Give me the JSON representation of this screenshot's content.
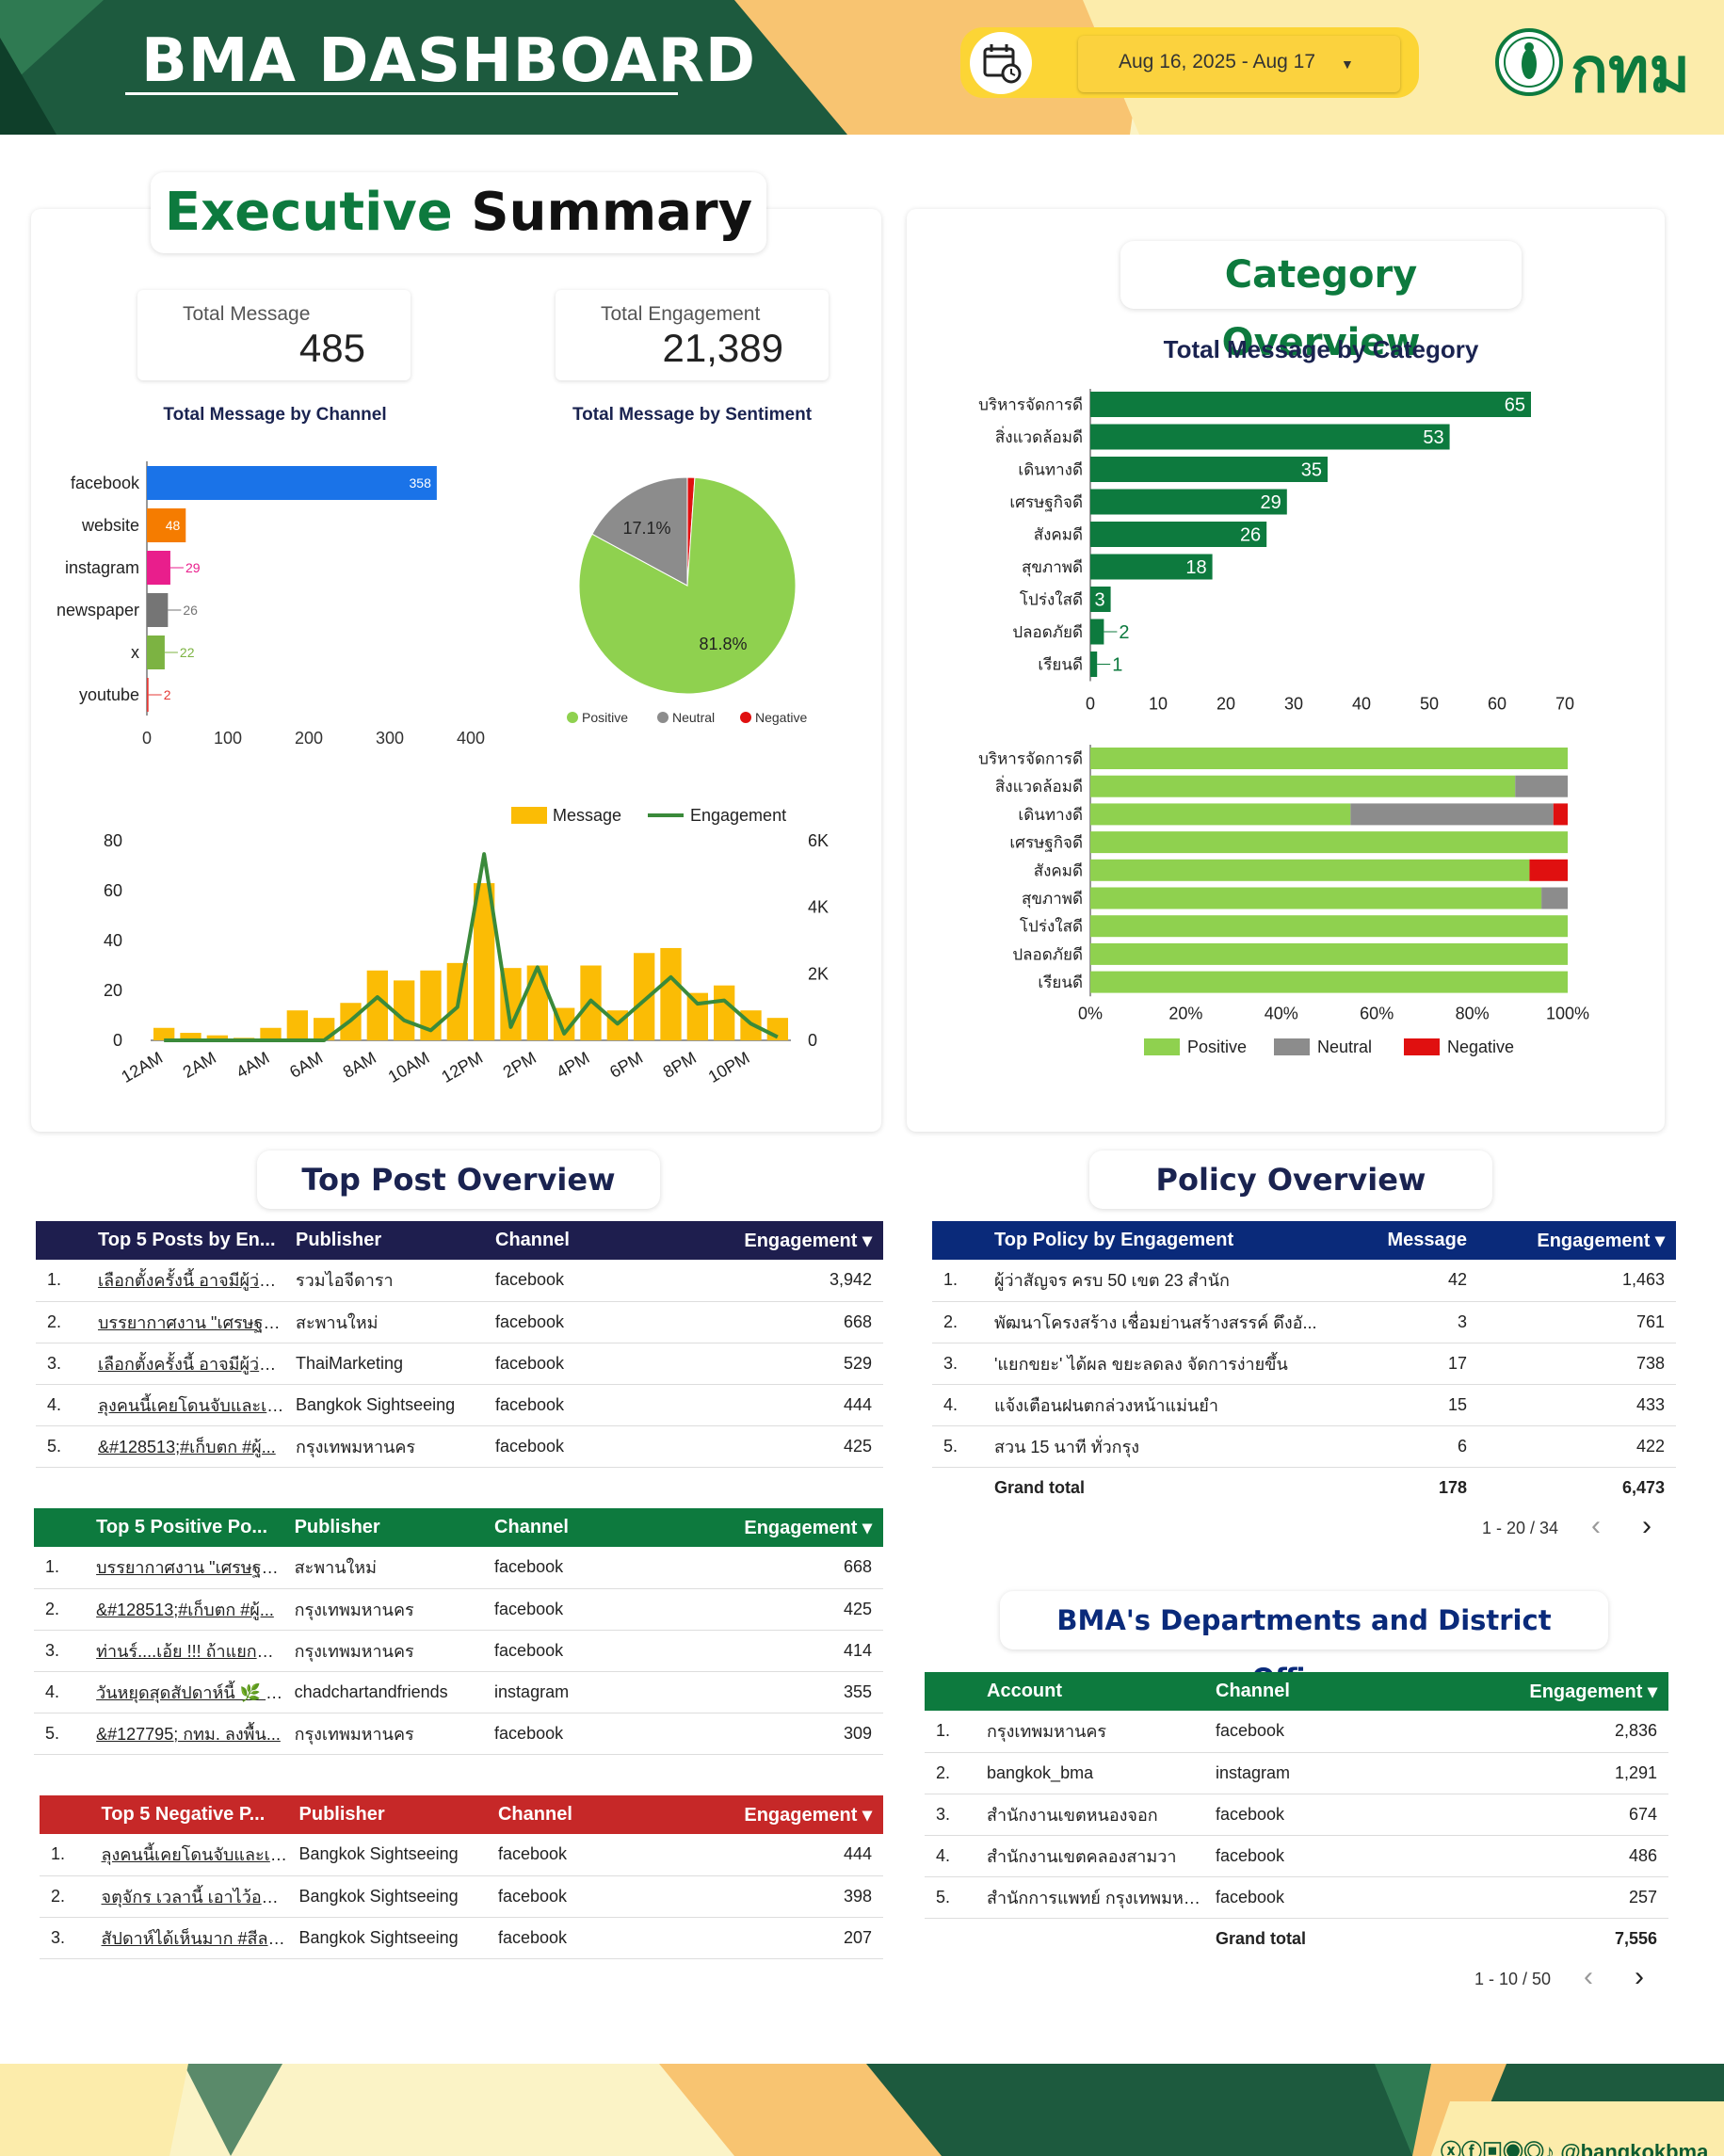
{
  "header": {
    "title": "BMA DASHBOARD",
    "date_range": "Aug 16, 2025 - Aug 17",
    "logo_text": "กทม"
  },
  "executive_summary": {
    "title_part1": "Executive",
    "title_part2": "Summary",
    "kpis": [
      {
        "label": "Total Message",
        "value": "485"
      },
      {
        "label": "Total Engagement",
        "value": "21,389"
      }
    ],
    "channel_chart_title": "Total Message by Channel",
    "sentiment_chart_title": "Total Message by Sentiment",
    "sentiment_labels": {
      "neutral_pct": "17.1%",
      "positive_pct": "81.8%"
    }
  },
  "category_overview": {
    "title": "Category Overview",
    "chart_title": "Total Message by Category"
  },
  "top_post_overview": {
    "title": "Top Post Overview",
    "engagement_table": {
      "headers": [
        "Top 5 Posts by En...",
        "Publisher",
        "Channel",
        "Engagement ▾"
      ],
      "rows": [
        [
          "1.",
          "เลือกตั้งครั้งนี้ อาจมีผู้ว่าคน...",
          "รวมไอจีดารา",
          "facebook",
          "3,942"
        ],
        [
          "2.",
          "บรรยากาศงาน \"เศรษฐกิจ...",
          "สะพานใหม่",
          "facebook",
          "668"
        ],
        [
          "3.",
          "เลือกตั้งครั้งนี้ อาจมีผู้ว่าคน...",
          "ThaiMarketing",
          "facebook",
          "529"
        ],
        [
          "4.",
          "ลุงคนนี้เคยโดนจับและเซ็น...",
          "Bangkok Sightseeing",
          "facebook",
          "444"
        ],
        [
          "5.",
          "&#128513;#เก็บตก #ผู้...",
          "กรุงเทพมหานคร",
          "facebook",
          "425"
        ]
      ]
    },
    "positive_table": {
      "headers": [
        "Top 5 Positive Po...",
        "Publisher",
        "Channel",
        "Engagement ▾"
      ],
      "rows": [
        [
          "1.",
          "บรรยากาศงาน \"เศรษฐกิจ...",
          "สะพานใหม่",
          "facebook",
          "668"
        ],
        [
          "2.",
          "&#128513;#เก็บตก #ผู้...",
          "กรุงเทพมหานคร",
          "facebook",
          "425"
        ],
        [
          "3.",
          "ท่านร์....เอ้ย !!! ถ้าแยก&#...",
          "กรุงเทพมหานคร",
          "facebook",
          "414"
        ],
        [
          "4.",
          "วันหยุดสุดสัปดาห์นี้ 🌿 ช...",
          "chadchartandfriends",
          "instagram",
          "355"
        ],
        [
          "5.",
          "&#127795; กทม. ลงพื้น...",
          "กรุงเทพมหานคร",
          "facebook",
          "309"
        ]
      ]
    },
    "negative_table": {
      "headers": [
        "Top 5 Negative P...",
        "Publisher",
        "Channel",
        "Engagement ▾"
      ],
      "rows": [
        [
          "1.",
          "ลุงคนนี้เคยโดนจับและเซ็น...",
          "Bangkok Sightseeing",
          "facebook",
          "444"
        ],
        [
          "2.",
          "จตุจักร เวลานี้ เอาไว้อวดนั...",
          "Bangkok Sightseeing",
          "facebook",
          "398"
        ],
        [
          "3.",
          "สัปดาห์ได้เห็นมาก #สีลม เมื่...",
          "Bangkok Sightseeing",
          "facebook",
          "207"
        ]
      ]
    }
  },
  "policy_overview": {
    "title": "Policy Overview",
    "table": {
      "headers": [
        "Top Policy by Engagement",
        "Message",
        "Engagement ▾"
      ],
      "rows": [
        [
          "1.",
          "ผู้ว่าสัญจร ครบ 50 เขต 23 สำนัก",
          "42",
          "1,463"
        ],
        [
          "2.",
          "พัฒนาโครงสร้าง เชื่อมย่านสร้างสรรค์ ดึงอั...",
          "3",
          "761"
        ],
        [
          "3.",
          "'แยกขยะ' ได้ผล ขยะลดลง จัดการง่ายขึ้น",
          "17",
          "738"
        ],
        [
          "4.",
          "แจ้งเตือนฝนตกล่วงหน้าแม่นยำ",
          "15",
          "433"
        ],
        [
          "5.",
          "สวน 15 นาที ทั่วกรุง",
          "6",
          "422"
        ]
      ],
      "total": {
        "label": "Grand total",
        "message": "178",
        "engagement": "6,473"
      },
      "pager": "1 - 20 / 34"
    }
  },
  "departments": {
    "title": "BMA's Departments and District Offices",
    "table": {
      "headers": [
        "Account",
        "Channel",
        "Engagement ▾"
      ],
      "rows": [
        [
          "1.",
          "กรุงเทพมหานคร",
          "facebook",
          "2,836"
        ],
        [
          "2.",
          "bangkok_bma",
          "instagram",
          "1,291"
        ],
        [
          "3.",
          "สำนักงานเขตหนองจอก",
          "facebook",
          "674"
        ],
        [
          "4.",
          "สำนักงานเขตคลองสามวา",
          "facebook",
          "486"
        ],
        [
          "5.",
          "สำนักการแพทย์ กรุงเทพมหานคร",
          "facebook",
          "257"
        ]
      ],
      "total": {
        "label": "Grand total",
        "engagement": "7,556"
      },
      "pager": "1 - 10 / 50"
    }
  },
  "footer": {
    "social_handle": "@bangkokbma"
  },
  "colors": {
    "bma_green": "#0d7a3e",
    "positive": "#8fd14f",
    "neutral": "#8c8c8c",
    "negative": "#e01010",
    "message_bar": "#fbbc05",
    "engagement_line": "#3a8a3a",
    "header_dark_blue": "#1e1e4e",
    "header_navy": "#0a2a7a",
    "header_red": "#c62828"
  },
  "chart_data": [
    {
      "type": "bar",
      "title": "Total Message by Channel",
      "orientation": "horizontal",
      "categories": [
        "facebook",
        "website",
        "instagram",
        "newspaper",
        "x",
        "youtube"
      ],
      "values": [
        358,
        48,
        29,
        26,
        22,
        2
      ],
      "bar_colors": [
        "#1a73e8",
        "#f57c00",
        "#e91e8c",
        "#757575",
        "#7cb342",
        "#e53935"
      ],
      "xlim": [
        0,
        400
      ],
      "xticks": [
        0,
        100,
        200,
        300,
        400
      ]
    },
    {
      "type": "pie",
      "title": "Total Message by Sentiment",
      "labels": [
        "Positive",
        "Neutral",
        "Negative"
      ],
      "values": [
        81.8,
        17.1,
        1.1
      ],
      "legend": "bottom"
    },
    {
      "type": "bar",
      "subtype": "bar+line",
      "legend": "top-right",
      "categories": [
        "12AM",
        "1AM",
        "2AM",
        "3AM",
        "4AM",
        "5AM",
        "6AM",
        "7AM",
        "8AM",
        "9AM",
        "10AM",
        "11AM",
        "12PM",
        "1PM",
        "2PM",
        "3PM",
        "4PM",
        "5PM",
        "6PM",
        "7PM",
        "8PM",
        "9PM",
        "10PM",
        "11PM"
      ],
      "tick_labels": [
        "12AM",
        "2AM",
        "4AM",
        "6AM",
        "8AM",
        "10AM",
        "12PM",
        "2PM",
        "4PM",
        "6PM",
        "8PM",
        "10PM"
      ],
      "series": [
        {
          "name": "Message",
          "axis": "left",
          "values": [
            5,
            3,
            2,
            1,
            5,
            12,
            9,
            15,
            28,
            24,
            28,
            31,
            63,
            29,
            30,
            13,
            30,
            12,
            35,
            37,
            19,
            22,
            12,
            9
          ]
        },
        {
          "name": "Engagement",
          "axis": "right",
          "values": [
            0,
            0,
            0,
            0,
            0,
            0,
            0,
            600,
            1300,
            600,
            300,
            1000,
            5600,
            400,
            2200,
            200,
            1200,
            500,
            1200,
            1900,
            1100,
            1200,
            500,
            100
          ]
        }
      ],
      "ylim_left": [
        0,
        80
      ],
      "yticks_left": [
        0,
        20,
        40,
        60,
        80
      ],
      "ylim_right": [
        0,
        6000
      ],
      "yticks_right": [
        "0",
        "2K",
        "4K",
        "6K"
      ]
    },
    {
      "type": "bar",
      "title": "Total Message by Category",
      "orientation": "horizontal",
      "categories": [
        "บริหารจัดการดี",
        "สิ่งแวดล้อมดี",
        "เดินทางดี",
        "เศรษฐกิจดี",
        "สังคมดี",
        "สุขภาพดี",
        "โปร่งใสดี",
        "ปลอดภัยดี",
        "เรียนดี"
      ],
      "values": [
        65,
        53,
        35,
        29,
        26,
        18,
        3,
        2,
        1
      ],
      "xlim": [
        0,
        70
      ],
      "xticks": [
        0,
        10,
        20,
        30,
        40,
        50,
        60,
        70
      ]
    },
    {
      "type": "bar",
      "subtype": "stacked-100-horizontal",
      "legend": "bottom",
      "categories": [
        "บริหารจัดการดี",
        "สิ่งแวดล้อมดี",
        "เดินทางดี",
        "เศรษฐกิจดี",
        "สังคมดี",
        "สุขภาพดี",
        "โปร่งใสดี",
        "ปลอดภัยดี",
        "เรียนดี"
      ],
      "series": [
        {
          "name": "Positive",
          "values": [
            100,
            89,
            54.5,
            100,
            92,
            94.5,
            100,
            100,
            100
          ]
        },
        {
          "name": "Neutral",
          "values": [
            0,
            11,
            42.5,
            0,
            0,
            5.5,
            0,
            0,
            0
          ]
        },
        {
          "name": "Negative",
          "values": [
            0,
            0,
            3,
            0,
            8,
            0,
            0,
            0,
            0
          ]
        }
      ],
      "xticks": [
        "0%",
        "20%",
        "40%",
        "60%",
        "80%",
        "100%"
      ]
    }
  ]
}
